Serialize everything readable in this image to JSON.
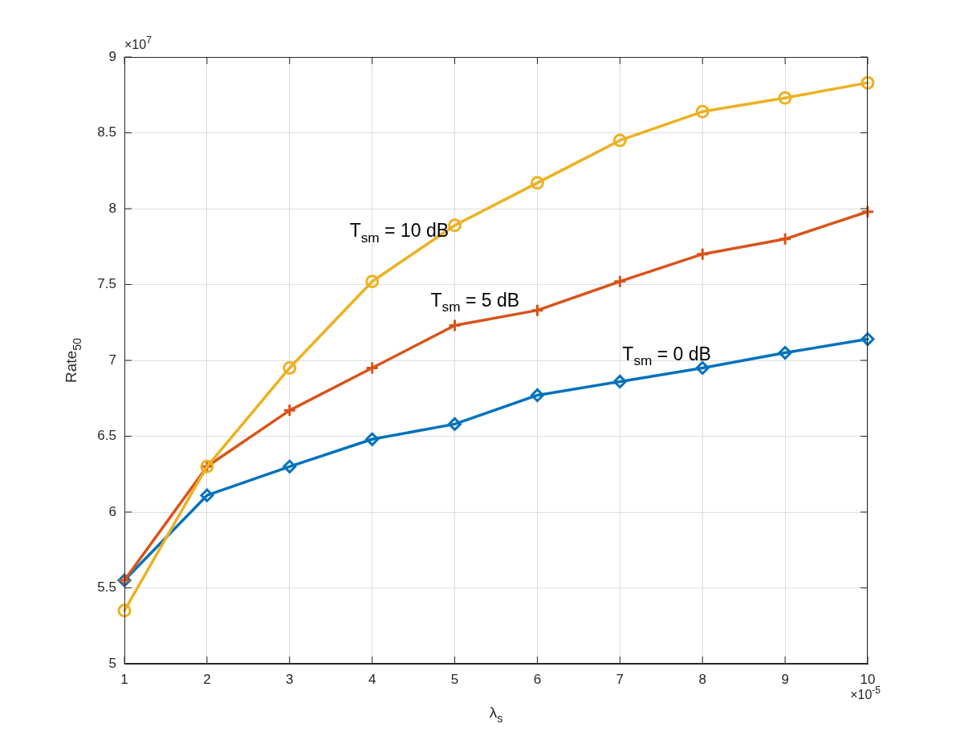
{
  "chart_data": {
    "type": "line",
    "xlabel": "λ$_{s}$",
    "ylabel": "Rate$_{50}$",
    "x": [
      1,
      2,
      3,
      4,
      5,
      6,
      7,
      8,
      9,
      10
    ],
    "series": [
      {
        "name": "T$_{sm}$ = 0 dB",
        "color": "#0072bd",
        "marker": "diamond",
        "values": [
          5.55,
          6.11,
          6.3,
          6.48,
          6.58,
          6.77,
          6.86,
          6.95,
          7.05,
          7.14
        ]
      },
      {
        "name": "T$_{sm}$ = 5 dB",
        "color": "#d95319",
        "marker": "cross",
        "values": [
          5.55,
          6.3,
          6.67,
          6.95,
          7.23,
          7.33,
          7.52,
          7.7,
          7.8,
          7.98
        ]
      },
      {
        "name": "T$_{sm}$ = 10 dB",
        "color": "#edb120",
        "marker": "circle",
        "values": [
          5.35,
          6.3,
          6.95,
          7.52,
          7.89,
          8.17,
          8.45,
          8.64,
          8.73,
          8.83
        ]
      }
    ],
    "xlim": [
      1,
      10
    ],
    "xticks": [
      1,
      2,
      3,
      4,
      5,
      6,
      7,
      8,
      9,
      10
    ],
    "ylim": [
      5,
      9
    ],
    "yticks": [
      5,
      5.5,
      6,
      6.5,
      7,
      7.5,
      8,
      8.5,
      9
    ],
    "grid": true,
    "line_style": "solid",
    "annotations": [
      "×10$^{7}$",
      "×10$^{-5}$"
    ]
  }
}
